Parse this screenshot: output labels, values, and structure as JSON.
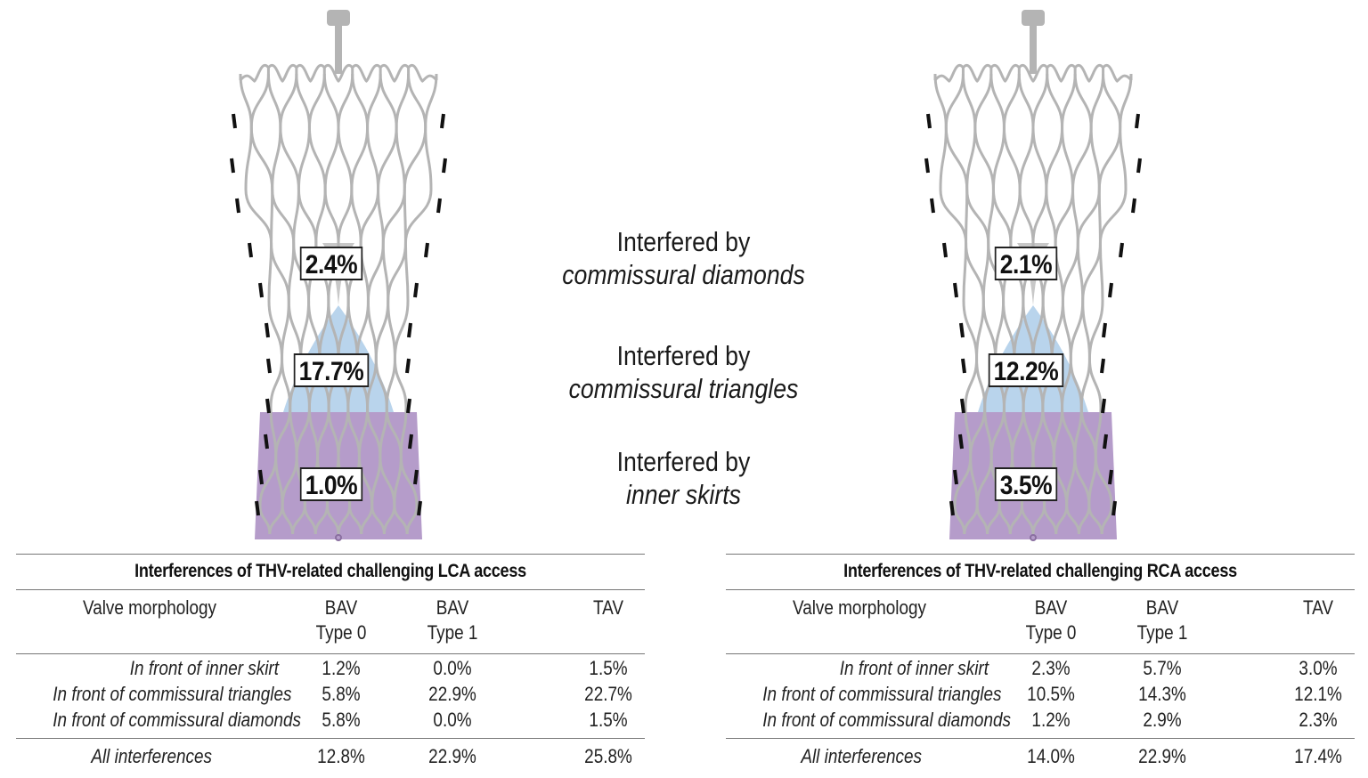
{
  "colors": {
    "stent": "#b4b4b4",
    "triangle_zone": "#b9d4ec",
    "skirt_zone": "#b59cca",
    "marker": "#111111",
    "rule": "#777777"
  },
  "valves": {
    "lca": {
      "diamonds_pct": "2.4%",
      "triangles_pct": "17.7%",
      "skirts_pct": "1.0%"
    },
    "rca": {
      "diamonds_pct": "2.1%",
      "triangles_pct": "12.2%",
      "skirts_pct": "3.5%"
    }
  },
  "legend": {
    "diamonds": {
      "prefix": "Interfered by",
      "term": "commissural diamonds"
    },
    "triangles": {
      "prefix": "Interfered by",
      "term": "commissural triangles"
    },
    "skirts": {
      "prefix": "Interfered by",
      "term": "inner skirts"
    }
  },
  "tables": {
    "lca": {
      "title": "Interferences of THV-related challenging LCA access",
      "headers": [
        "Valve morphology",
        "BAV\nType 0",
        "BAV\nType 1",
        "TAV"
      ],
      "rows": [
        {
          "label": "In front of inner skirt",
          "values": [
            "1.2%",
            "0.0%",
            "1.5%"
          ]
        },
        {
          "label": "In front of commissural triangles",
          "values": [
            "5.8%",
            "22.9%",
            "22.7%"
          ]
        },
        {
          "label": "In front of commissural diamonds",
          "values": [
            "5.8%",
            "0.0%",
            "1.5%"
          ]
        }
      ],
      "total": {
        "label": "All interferences",
        "values": [
          "12.8%",
          "22.9%",
          "25.8%"
        ]
      }
    },
    "rca": {
      "title": "Interferences of THV-related challenging RCA access",
      "headers": [
        "Valve morphology",
        "BAV\nType 0",
        "BAV\nType 1",
        "TAV"
      ],
      "rows": [
        {
          "label": "In front of inner skirt",
          "values": [
            "2.3%",
            "5.7%",
            "3.0%"
          ]
        },
        {
          "label": "In front of commissural triangles",
          "values": [
            "10.5%",
            "14.3%",
            "12.1%"
          ]
        },
        {
          "label": "In front of commissural diamonds",
          "values": [
            "1.2%",
            "2.9%",
            "2.3%"
          ]
        }
      ],
      "total": {
        "label": "All interferences",
        "values": [
          "14.0%",
          "22.9%",
          "17.4%"
        ]
      }
    }
  }
}
